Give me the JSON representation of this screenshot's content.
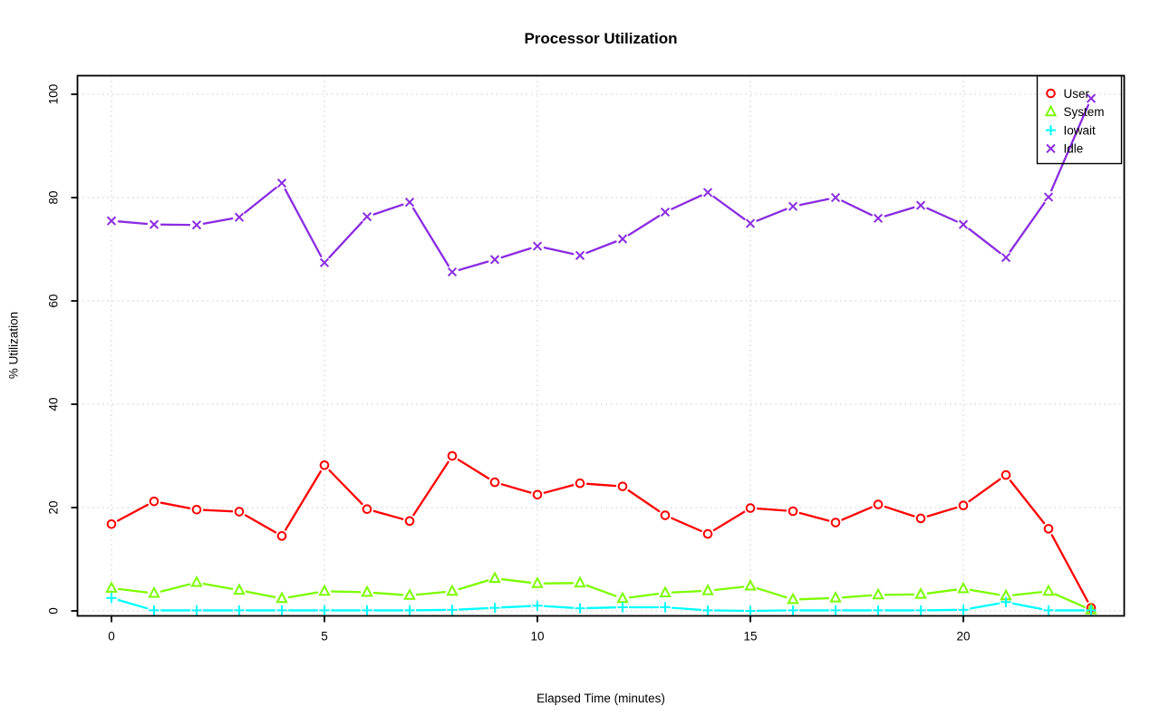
{
  "chart_data": {
    "type": "line",
    "title": "Processor Utilization",
    "xlabel": "Elapsed Time (minutes)",
    "ylabel": "% Utilization",
    "xlim": [
      0,
      23
    ],
    "ylim": [
      0,
      100
    ],
    "xticks": [
      0,
      5,
      10,
      15,
      20
    ],
    "yticks": [
      0,
      20,
      40,
      60,
      80,
      100
    ],
    "grid": "dotted",
    "legend_position": "top-right",
    "x": [
      0,
      1,
      2,
      3,
      4,
      5,
      6,
      7,
      8,
      9,
      10,
      11,
      12,
      13,
      14,
      15,
      16,
      17,
      18,
      19,
      20,
      21,
      22,
      23
    ],
    "series": [
      {
        "name": "User",
        "marker": "circle",
        "color": "#FF0000",
        "values": [
          16.8,
          21.2,
          19.6,
          19.2,
          14.5,
          28.2,
          19.7,
          17.4,
          30.0,
          24.9,
          22.5,
          24.7,
          24.1,
          18.5,
          14.9,
          19.9,
          19.3,
          17.1,
          20.6,
          17.9,
          20.4,
          26.3,
          15.9,
          0.6
        ]
      },
      {
        "name": "System",
        "marker": "triangle",
        "color": "#7CFC00",
        "values": [
          4.4,
          3.4,
          5.5,
          4.0,
          2.4,
          3.8,
          3.6,
          3.0,
          3.8,
          6.3,
          5.3,
          5.4,
          2.4,
          3.5,
          3.9,
          4.8,
          2.2,
          2.5,
          3.1,
          3.2,
          4.3,
          2.9,
          3.8,
          0.2
        ]
      },
      {
        "name": "Iowait",
        "marker": "plus",
        "color": "#00FFFF",
        "values": [
          2.5,
          0.1,
          0.1,
          0.1,
          0.1,
          0.1,
          0.1,
          0.1,
          0.2,
          0.6,
          1.0,
          0.5,
          0.7,
          0.7,
          0.1,
          0.0,
          0.1,
          0.1,
          0.1,
          0.1,
          0.2,
          1.7,
          0.1,
          0.1
        ]
      },
      {
        "name": "Idle",
        "marker": "x",
        "color": "#8A2BE2",
        "values": [
          75.5,
          74.8,
          74.7,
          76.2,
          82.8,
          67.4,
          76.3,
          79.1,
          65.6,
          68.0,
          70.6,
          68.8,
          72.0,
          77.2,
          81.0,
          75.0,
          78.3,
          80.0,
          76.0,
          78.5,
          74.8,
          68.4,
          80.1,
          99.2
        ]
      }
    ]
  }
}
